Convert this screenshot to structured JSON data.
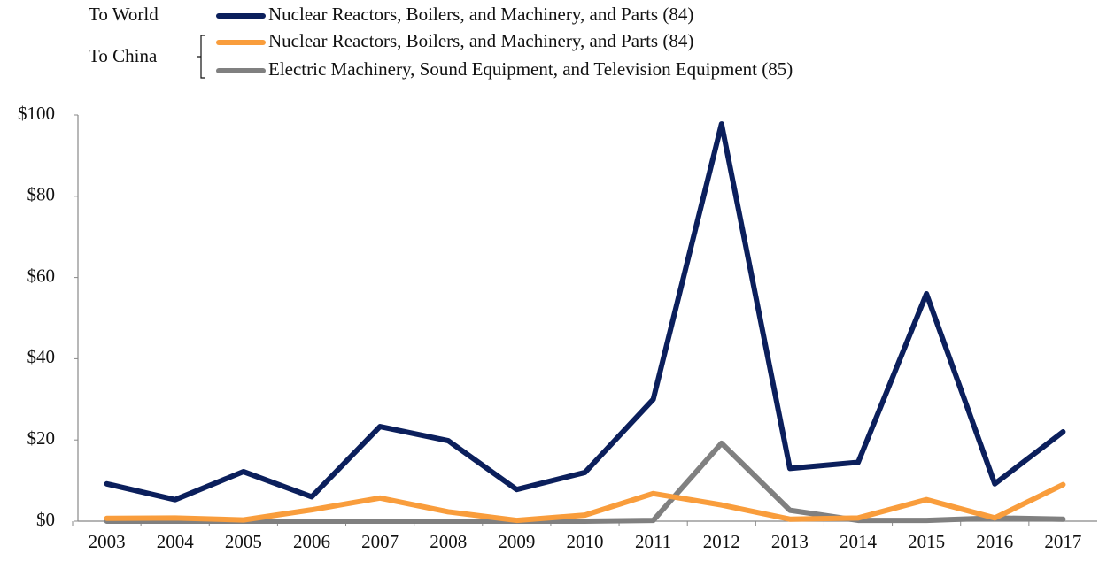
{
  "chart_data": {
    "type": "line",
    "legend_groups": [
      "To World",
      "To China"
    ],
    "categories": [
      "2003",
      "2004",
      "2005",
      "2006",
      "2007",
      "2008",
      "2009",
      "2010",
      "2011",
      "2012",
      "2013",
      "2014",
      "2015",
      "2016",
      "2017"
    ],
    "series": [
      {
        "name": "Nuclear Reactors, Boilers, and Machinery, and Parts  (84)",
        "color": "#0b1f5c",
        "values": [
          9.2,
          5.3,
          12.2,
          6,
          23.3,
          19.8,
          7.8,
          12,
          30,
          97.8,
          13,
          14.5,
          56,
          9.2,
          22
        ]
      },
      {
        "name": "Nuclear Reactors, Boilers, and Machinery, and Parts (84)",
        "color": "#f99d3c",
        "values": [
          0.7,
          0.8,
          0.3,
          2.8,
          5.7,
          2.3,
          0.2,
          1.5,
          6.8,
          4,
          0.5,
          0.8,
          5.3,
          0.8,
          9
        ]
      },
      {
        "name": "Electric Machinery, Sound Equipment, and Television Equipment (85)",
        "color": "#808080",
        "values": [
          0,
          0,
          0,
          0,
          0,
          0,
          0,
          0,
          0.2,
          19.2,
          2.7,
          0.2,
          0.2,
          0.8,
          0.5
        ]
      }
    ],
    "ylim": [
      0,
      100
    ],
    "yticks": [
      {
        "value": 0,
        "label": "$0"
      },
      {
        "value": 20,
        "label": "$20"
      },
      {
        "value": 40,
        "label": "$40"
      },
      {
        "value": 60,
        "label": "$60"
      },
      {
        "value": 80,
        "label": "$80"
      },
      {
        "value": 100,
        "label": "$100"
      }
    ]
  }
}
